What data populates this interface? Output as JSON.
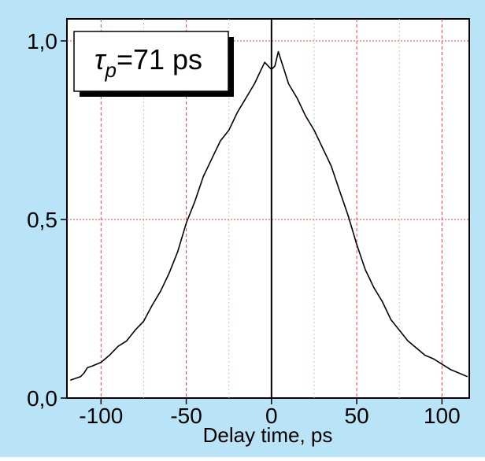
{
  "colors": {
    "background_panel": "#b9e3f6",
    "plot_area": "#ffffff",
    "trace": "#000000",
    "grid_major": "#ff3a3a",
    "grid_minor": "#9be29b",
    "axis": "#000000"
  },
  "chart_data": {
    "type": "line",
    "title": "",
    "xlabel": "Delay time, ps",
    "ylabel": "",
    "xlim": [
      -120,
      116
    ],
    "ylim": [
      0,
      1.0
    ],
    "x_ticks": [
      -100,
      -50,
      0,
      50,
      100
    ],
    "x_tick_labels": [
      "-100",
      "-50",
      "0",
      "50",
      "100"
    ],
    "x_minor_gridlines": [
      -75,
      -25,
      25,
      75
    ],
    "y_ticks": [
      0,
      0.5,
      1.0
    ],
    "y_tick_labels": [
      "0,0",
      "0,5",
      "1,0"
    ],
    "grid": true,
    "zero_line_x": 0,
    "annotation": {
      "symbol": "τ",
      "subscript": "p",
      "text": "=71 ps"
    },
    "series": [
      {
        "x": [
          -118,
          -115,
          -112,
          -110,
          -108,
          -105,
          -100,
          -95,
          -90,
          -85,
          -80,
          -75,
          -70,
          -65,
          -60,
          -55,
          -50,
          -45,
          -40,
          -35,
          -30,
          -25,
          -20,
          -15,
          -10,
          -8,
          -6,
          -4,
          -2,
          0,
          2,
          4,
          6,
          8,
          10,
          15,
          20,
          25,
          30,
          35,
          40,
          45,
          50,
          55,
          60,
          65,
          70,
          75,
          80,
          85,
          90,
          95,
          100,
          105,
          110,
          115
        ],
        "values": [
          0.05,
          0.055,
          0.06,
          0.07,
          0.085,
          0.09,
          0.1,
          0.12,
          0.145,
          0.16,
          0.19,
          0.215,
          0.26,
          0.3,
          0.35,
          0.41,
          0.49,
          0.55,
          0.62,
          0.67,
          0.72,
          0.75,
          0.8,
          0.84,
          0.88,
          0.9,
          0.92,
          0.94,
          0.93,
          0.92,
          0.93,
          0.97,
          0.94,
          0.91,
          0.88,
          0.84,
          0.79,
          0.75,
          0.7,
          0.65,
          0.58,
          0.51,
          0.43,
          0.36,
          0.31,
          0.27,
          0.22,
          0.19,
          0.16,
          0.14,
          0.12,
          0.11,
          0.095,
          0.08,
          0.07,
          0.06
        ]
      }
    ]
  }
}
